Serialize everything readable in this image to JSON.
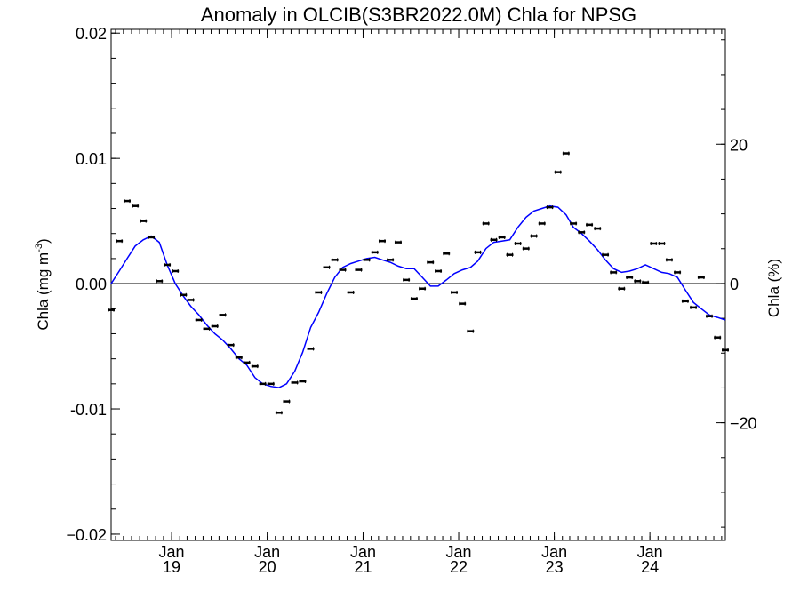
{
  "chart_data": {
    "type": "line",
    "title": "Anomaly in OLCIB(S3BR2022.0M) Chla for NPSG",
    "ylabel": "Chla (mg m",
    "ylabel_sup": "-3",
    "ylabel_close": ")",
    "y2label": "Chla (%)",
    "xlim": [
      "2018-05-15",
      "2024-10-15"
    ],
    "ylim": [
      -0.0205,
      0.0203
    ],
    "y2lim": [
      -36.9,
      36.5
    ],
    "y_ticks": [
      {
        "value": 0.02,
        "label": "0.02"
      },
      {
        "value": 0.01,
        "label": "0.01"
      },
      {
        "value": 0.0,
        "label": "0.00"
      },
      {
        "value": -0.01,
        "label": "-0.01"
      },
      {
        "value": -0.02,
        "label": "−0.02"
      }
    ],
    "y2_ticks": [
      {
        "value": 20,
        "label": "20"
      },
      {
        "value": 0,
        "label": "0"
      },
      {
        "value": -20,
        "label": "−20"
      }
    ],
    "x_ticks": [
      {
        "date": "2019-01-01",
        "month": "Jan",
        "year": "19"
      },
      {
        "date": "2020-01-01",
        "month": "Jan",
        "year": "20"
      },
      {
        "date": "2021-01-01",
        "month": "Jan",
        "year": "21"
      },
      {
        "date": "2022-01-01",
        "month": "Jan",
        "year": "22"
      },
      {
        "date": "2023-01-01",
        "month": "Jan",
        "year": "23"
      },
      {
        "date": "2024-01-01",
        "month": "Jan",
        "year": "24"
      }
    ],
    "zero_line": 0,
    "colors": {
      "smooth": "#0000ff",
      "points": "#000000",
      "axes": "#000000"
    },
    "series": [
      {
        "kind": "monthly_points",
        "x": [
          "2018-05-15",
          "2018-06-15",
          "2018-07-15",
          "2018-08-15",
          "2018-09-15",
          "2018-10-15",
          "2018-11-15",
          "2018-12-15",
          "2019-01-15",
          "2019-02-15",
          "2019-03-15",
          "2019-04-15",
          "2019-05-15",
          "2019-06-15",
          "2019-07-15",
          "2019-08-15",
          "2019-09-15",
          "2019-10-15",
          "2019-11-15",
          "2019-12-15",
          "2020-01-15",
          "2020-02-15",
          "2020-03-15",
          "2020-04-15",
          "2020-05-15",
          "2020-06-15",
          "2020-07-15",
          "2020-08-15",
          "2020-09-15",
          "2020-10-15",
          "2020-11-15",
          "2020-12-15",
          "2021-01-15",
          "2021-02-15",
          "2021-03-15",
          "2021-04-15",
          "2021-05-15",
          "2021-06-15",
          "2021-07-15",
          "2021-08-15",
          "2021-09-15",
          "2021-10-15",
          "2021-11-15",
          "2021-12-15",
          "2022-01-15",
          "2022-02-15",
          "2022-03-15",
          "2022-04-15",
          "2022-05-15",
          "2022-06-15",
          "2022-07-15",
          "2022-08-15",
          "2022-09-15",
          "2022-10-15",
          "2022-11-15",
          "2022-12-15",
          "2023-01-15",
          "2023-02-15",
          "2023-03-15",
          "2023-04-15",
          "2023-05-15",
          "2023-06-15",
          "2023-07-15",
          "2023-08-15",
          "2023-09-15",
          "2023-10-15",
          "2023-11-15",
          "2023-12-15",
          "2024-01-15",
          "2024-02-15",
          "2024-03-15",
          "2024-04-15",
          "2024-05-15",
          "2024-06-15",
          "2024-07-15",
          "2024-08-15",
          "2024-09-15",
          "2024-10-15"
        ],
        "values": [
          -0.0021,
          0.0034,
          0.0066,
          0.0062,
          0.005,
          0.0037,
          0.0002,
          0.0015,
          0.001,
          -0.0009,
          -0.0013,
          -0.0029,
          -0.0036,
          -0.0034,
          -0.0025,
          -0.0049,
          -0.0059,
          -0.0063,
          -0.0066,
          -0.008,
          -0.008,
          -0.0103,
          -0.0094,
          -0.0079,
          -0.0078,
          -0.0052,
          -0.0007,
          0.0013,
          0.0019,
          0.0011,
          -0.0007,
          0.0011,
          0.0019,
          0.0025,
          0.0034,
          0.0019,
          0.0033,
          0.0003,
          -0.0012,
          -0.0004,
          0.0017,
          0.001,
          0.0024,
          -0.0007,
          -0.0016,
          -0.0038,
          0.0025,
          0.0048,
          0.0035,
          0.0037,
          0.0023,
          0.0032,
          0.0028,
          0.0038,
          0.0048,
          0.0061,
          0.0089,
          0.0104,
          0.0048,
          0.0041,
          0.0047,
          0.0044,
          0.0023,
          0.0009,
          -0.0004,
          0.0005,
          0.0002,
          0.0001,
          0.0032,
          0.0032,
          0.0019,
          0.0009,
          -0.0014,
          -0.0019,
          0.0005,
          -0.0026,
          -0.0043,
          -0.0053
        ]
      },
      {
        "kind": "smoothed_line",
        "x": [
          "2018-05-15",
          "2018-06-15",
          "2018-07-15",
          "2018-08-15",
          "2018-09-15",
          "2018-10-15",
          "2018-11-15",
          "2018-12-15",
          "2019-01-15",
          "2019-02-15",
          "2019-03-15",
          "2019-04-15",
          "2019-05-15",
          "2019-06-15",
          "2019-07-15",
          "2019-08-15",
          "2019-09-15",
          "2019-10-15",
          "2019-11-15",
          "2019-12-15",
          "2020-01-15",
          "2020-02-15",
          "2020-03-15",
          "2020-04-15",
          "2020-05-15",
          "2020-06-15",
          "2020-07-15",
          "2020-08-15",
          "2020-09-15",
          "2020-10-15",
          "2020-11-15",
          "2020-12-15",
          "2021-01-15",
          "2021-02-15",
          "2021-03-15",
          "2021-04-15",
          "2021-05-15",
          "2021-06-15",
          "2021-07-15",
          "2021-08-15",
          "2021-09-15",
          "2021-10-15",
          "2021-11-15",
          "2021-12-15",
          "2022-01-15",
          "2022-02-15",
          "2022-03-15",
          "2022-04-15",
          "2022-05-15",
          "2022-06-15",
          "2022-07-15",
          "2022-08-15",
          "2022-09-15",
          "2022-10-15",
          "2022-11-15",
          "2022-12-15",
          "2023-01-15",
          "2023-02-15",
          "2023-03-15",
          "2023-04-15",
          "2023-05-15",
          "2023-06-15",
          "2023-07-15",
          "2023-08-15",
          "2023-09-15",
          "2023-10-15",
          "2023-11-15",
          "2023-12-15",
          "2024-01-15",
          "2024-02-15",
          "2024-03-15",
          "2024-04-15",
          "2024-05-15",
          "2024-06-15",
          "2024-07-15",
          "2024-08-15",
          "2024-09-15",
          "2024-10-15"
        ],
        "values": [
          0.0,
          0.001,
          0.002,
          0.003,
          0.0035,
          0.0038,
          0.0033,
          0.0015,
          0.0,
          -0.001,
          -0.0018,
          -0.0025,
          -0.0033,
          -0.004,
          -0.0045,
          -0.0052,
          -0.006,
          -0.0065,
          -0.0075,
          -0.008,
          -0.0082,
          -0.0083,
          -0.008,
          -0.007,
          -0.0055,
          -0.0035,
          -0.0023,
          -0.0008,
          0.0005,
          0.0013,
          0.0016,
          0.0018,
          0.002,
          0.0021,
          0.0019,
          0.0017,
          0.0014,
          0.0012,
          0.0012,
          0.0005,
          -0.0002,
          -0.0002,
          0.0003,
          0.0008,
          0.0011,
          0.0013,
          0.0018,
          0.0028,
          0.0033,
          0.0034,
          0.0035,
          0.0045,
          0.0053,
          0.0058,
          0.006,
          0.0062,
          0.0061,
          0.0055,
          0.0045,
          0.004,
          0.0034,
          0.0027,
          0.0019,
          0.0012,
          0.0009,
          0.001,
          0.0012,
          0.0015,
          0.0012,
          0.0009,
          0.0008,
          0.0005,
          -0.0005,
          -0.0015,
          -0.002,
          -0.0025,
          -0.0027,
          -0.0029
        ]
      }
    ]
  }
}
